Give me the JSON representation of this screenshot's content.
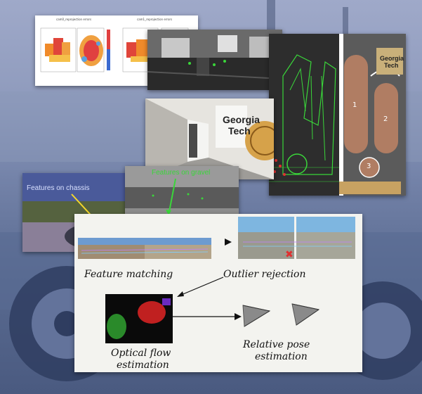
{
  "background": {
    "description_color": "#7f8db3"
  },
  "heatmap_panel": {
    "title_left": "cam0_reprojection errors",
    "title_right": "cam1_reprojection errors"
  },
  "hallway_sign": {
    "line1": "Georgia",
    "line2": "Tech"
  },
  "map_panel": {
    "logo": {
      "line1": "Georgia",
      "line2": "Tech"
    },
    "track_labels": [
      "1",
      "2",
      "3"
    ]
  },
  "feature_labels": {
    "chassis": "Features on chassis",
    "gravel": "Features on gravel"
  },
  "pipeline": {
    "feature_matching": "Feature matching",
    "outlier_rejection": "Outlier rejection",
    "optical_flow": {
      "line1": "Optical flow",
      "line2": "estimation"
    },
    "relative_pose": {
      "line1": "Relative pose",
      "line2": "estimation"
    }
  },
  "colors": {
    "track": "#b07d63",
    "feature_green": "#3ad63a",
    "arrow_yellow": "#f5d82a",
    "outlier_red": "#e03030"
  }
}
